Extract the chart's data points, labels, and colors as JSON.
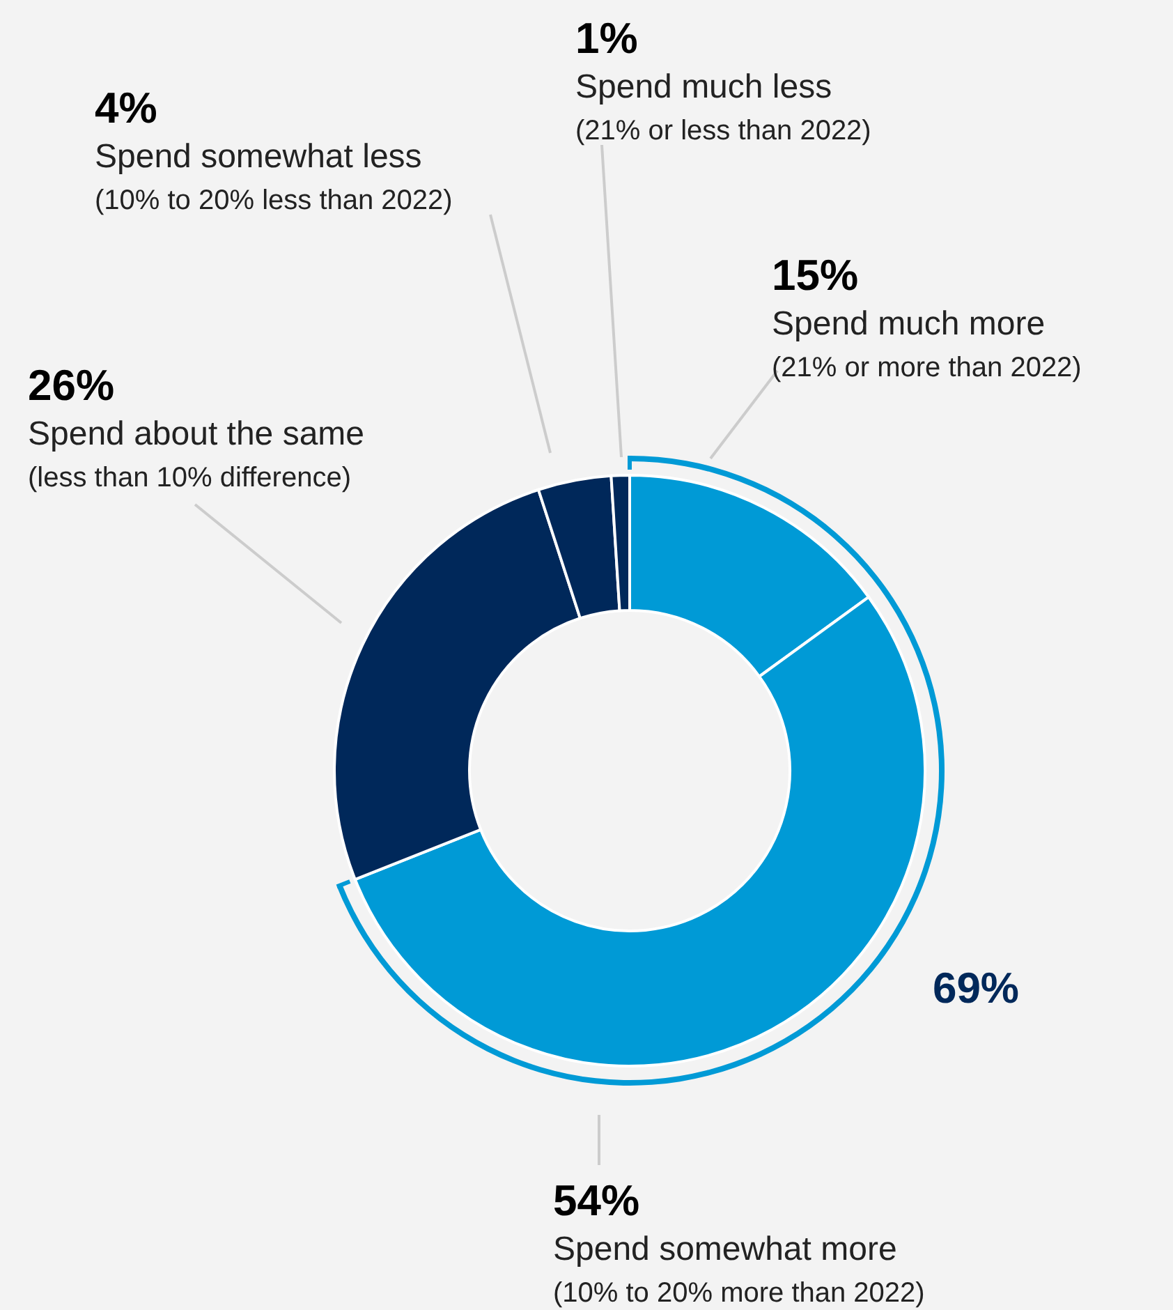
{
  "chart_data": {
    "type": "donut",
    "categories": [
      "Spend much more\n(21% or more than 2022)",
      "Spend somewhat more\n(10% to 20% more than 2022)",
      "Spend about the same\n(less than 10% difference)",
      "Spend somewhat less\n(10% to 20% less than 2022)",
      "Spend much less\n(21% or less than 2022)"
    ],
    "values": [
      15,
      54,
      26,
      4,
      1
    ],
    "colors": [
      "#009ad6",
      "#009ad6",
      "#00285a",
      "#00285a",
      "#00285a"
    ],
    "value_labels": [
      "15%",
      "54%",
      "26%",
      "4%",
      "1%"
    ],
    "annotations": [
      "69%"
    ]
  }
}
